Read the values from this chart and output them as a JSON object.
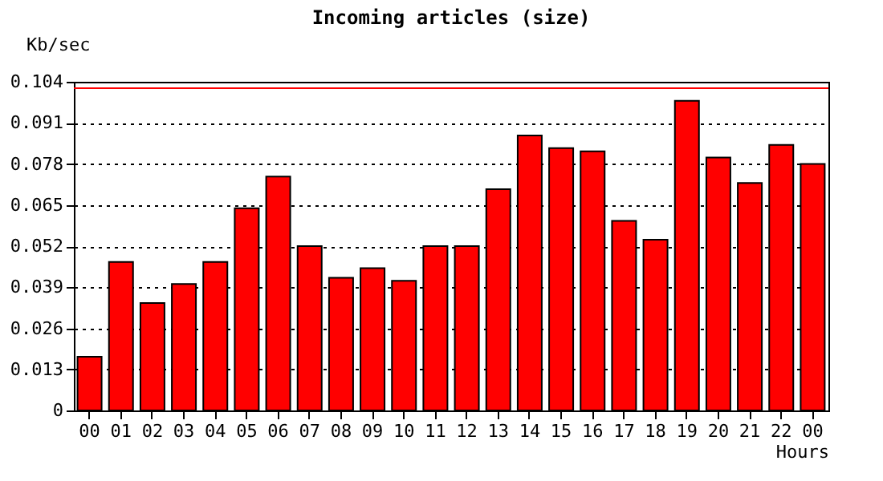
{
  "chart_data": {
    "type": "bar",
    "title": "Incoming articles (size)",
    "xlabel": "Hours",
    "ylabel": "Kb/sec",
    "categories": [
      "00",
      "01",
      "02",
      "03",
      "04",
      "05",
      "06",
      "07",
      "08",
      "09",
      "10",
      "11",
      "12",
      "13",
      "14",
      "15",
      "16",
      "17",
      "18",
      "19",
      "20",
      "21",
      "22",
      "00"
    ],
    "values": [
      0.017,
      0.047,
      0.034,
      0.04,
      0.047,
      0.064,
      0.074,
      0.052,
      0.042,
      0.045,
      0.041,
      0.052,
      0.052,
      0.07,
      0.087,
      0.083,
      0.082,
      0.06,
      0.054,
      0.098,
      0.08,
      0.072,
      0.084,
      0.078
    ],
    "color": "#ff0000",
    "ylim": [
      0,
      0.104
    ],
    "yticks": [
      0,
      0.013,
      0.026,
      0.039,
      0.052,
      0.065,
      0.078,
      0.091,
      0.104
    ],
    "grid": "y",
    "line_style": "dotted",
    "ref_lines": [
      {
        "axis": "y",
        "value": 0.102,
        "color": "#ff0000"
      }
    ]
  }
}
